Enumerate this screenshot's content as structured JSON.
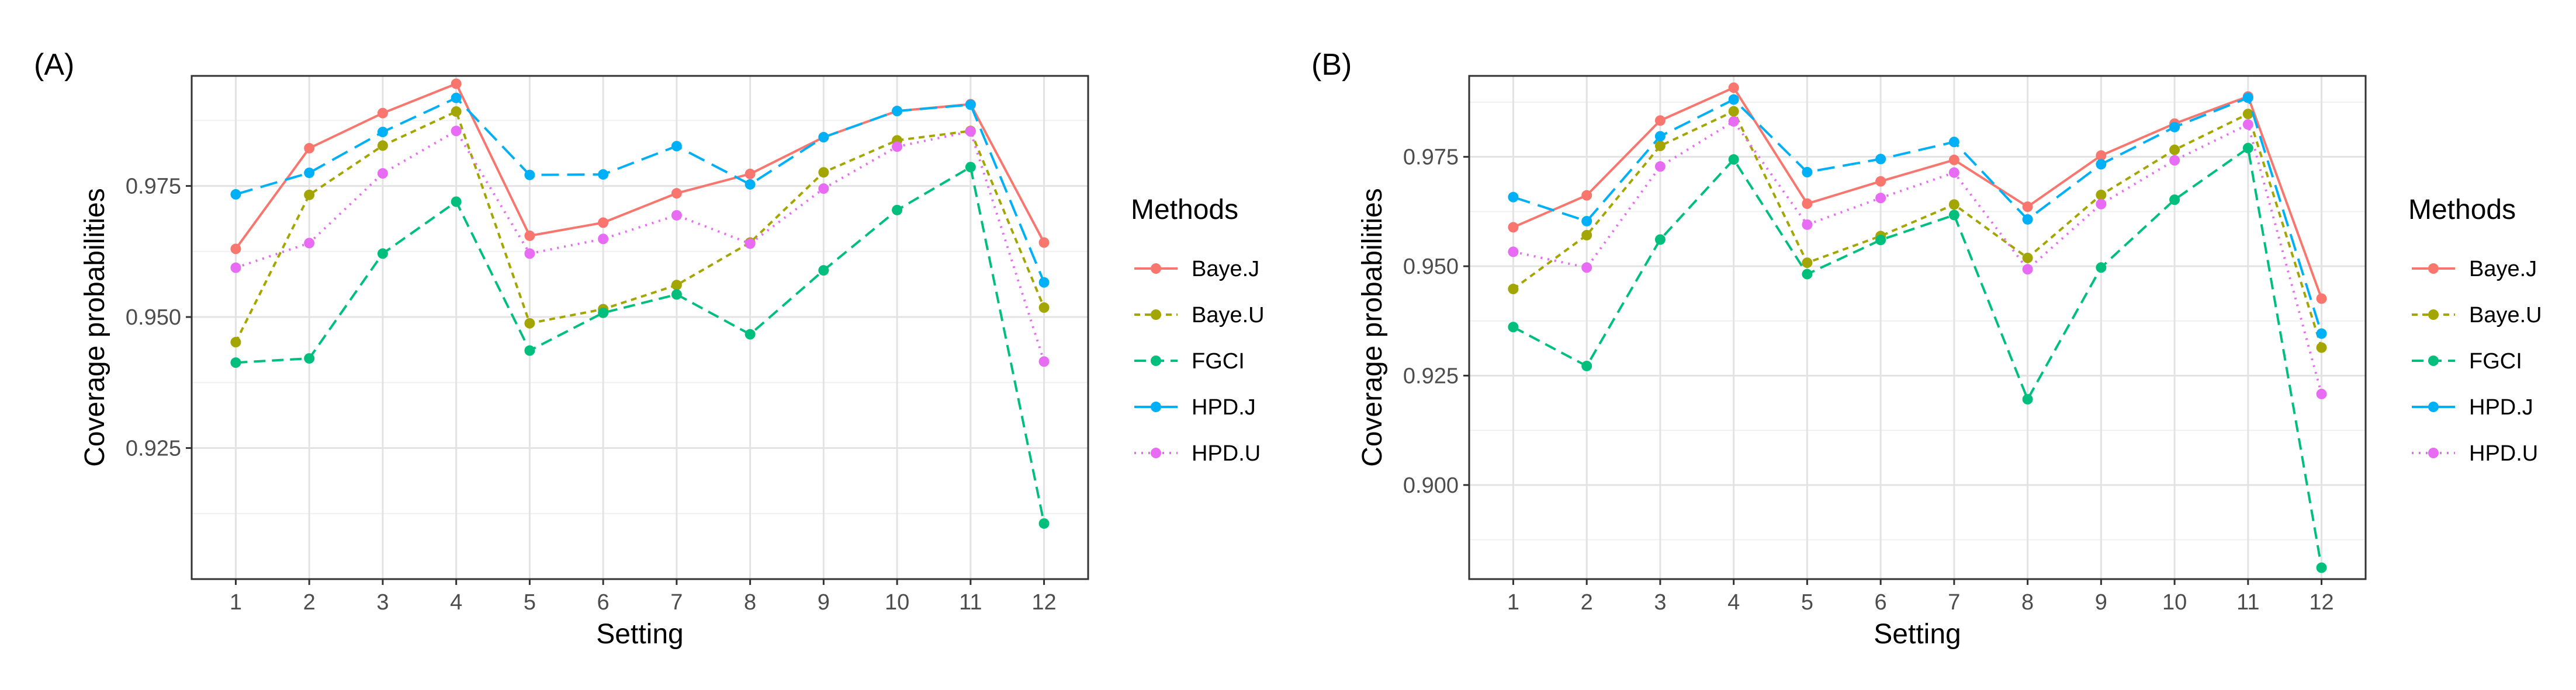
{
  "chart_data": [
    {
      "type": "line",
      "panel_label": "(A)",
      "xlabel": "Setting",
      "ylabel": "Coverage probabilities",
      "categories": [
        "1",
        "2",
        "3",
        "4",
        "5",
        "6",
        "7",
        "8",
        "9",
        "10",
        "11",
        "12"
      ],
      "ylim": [
        0.9,
        0.996
      ],
      "yticks": [
        0.925,
        0.95,
        0.975
      ],
      "ytick_labels": [
        "0.925",
        "0.950",
        "0.975"
      ],
      "legend": {
        "title": "Methods",
        "position": "right"
      },
      "grid": true,
      "series": [
        {
          "name": "Baye.J",
          "values": [
            0.963,
            0.9822,
            0.9889,
            0.9945,
            0.9655,
            0.968,
            0.9736,
            0.9773,
            0.9843,
            0.9893,
            0.9906,
            0.9642
          ]
        },
        {
          "name": "Baye.U",
          "values": [
            0.9452,
            0.9733,
            0.9827,
            0.9892,
            0.9488,
            0.9515,
            0.9561,
            0.9642,
            0.9776,
            0.9837,
            0.9855,
            0.9518
          ]
        },
        {
          "name": "FGCI",
          "values": [
            0.9413,
            0.9421,
            0.9621,
            0.972,
            0.9436,
            0.9508,
            0.9543,
            0.9467,
            0.9589,
            0.9704,
            0.9786,
            0.9106
          ]
        },
        {
          "name": "HPD.J",
          "values": [
            0.9734,
            0.9775,
            0.9853,
            0.9918,
            0.9771,
            0.9772,
            0.9826,
            0.9753,
            0.9843,
            0.9893,
            0.9905,
            0.9566
          ]
        },
        {
          "name": "HPD.U",
          "values": [
            0.9594,
            0.9641,
            0.9774,
            0.9855,
            0.9621,
            0.9649,
            0.9694,
            0.964,
            0.9745,
            0.9825,
            0.9854,
            0.9415
          ]
        }
      ]
    },
    {
      "type": "line",
      "panel_label": "(B)",
      "xlabel": "Setting",
      "ylabel": "Coverage probabilities",
      "categories": [
        "1",
        "2",
        "3",
        "4",
        "5",
        "6",
        "7",
        "8",
        "9",
        "10",
        "11",
        "12"
      ],
      "ylim": [
        0.8785,
        0.9935
      ],
      "yticks": [
        0.9,
        0.925,
        0.95,
        0.975
      ],
      "ytick_labels": [
        "0.900",
        "0.925",
        "0.950",
        "0.975"
      ],
      "legend": {
        "title": "Methods",
        "position": "right"
      },
      "grid": true,
      "series": [
        {
          "name": "Baye.J",
          "values": [
            0.9589,
            0.9662,
            0.9833,
            0.9908,
            0.9643,
            0.9694,
            0.9743,
            0.9636,
            0.9753,
            0.9826,
            0.9888,
            0.9426
          ]
        },
        {
          "name": "Baye.U",
          "values": [
            0.9448,
            0.9571,
            0.9775,
            0.9854,
            0.9508,
            0.9569,
            0.9641,
            0.9519,
            0.9663,
            0.9766,
            0.9848,
            0.9314
          ]
        },
        {
          "name": "FGCI",
          "values": [
            0.9361,
            0.9272,
            0.9561,
            0.9744,
            0.9482,
            0.956,
            0.9617,
            0.9196,
            0.9497,
            0.9652,
            0.977,
            0.8811
          ]
        },
        {
          "name": "HPD.J",
          "values": [
            0.9658,
            0.9603,
            0.9797,
            0.9881,
            0.9715,
            0.9745,
            0.9784,
            0.9607,
            0.9733,
            0.9818,
            0.9885,
            0.9346
          ]
        },
        {
          "name": "HPD.U",
          "values": [
            0.9533,
            0.9497,
            0.9728,
            0.9831,
            0.9595,
            0.9656,
            0.9714,
            0.9493,
            0.9642,
            0.9742,
            0.9824,
            0.9208
          ]
        }
      ]
    }
  ],
  "styles": {
    "Baye.J": {
      "color": "#F8766D",
      "dash": "solid"
    },
    "Baye.U": {
      "color": "#A3A500",
      "dash": "short-dash"
    },
    "FGCI": {
      "color": "#00BF7D",
      "dash": "dash"
    },
    "HPD.J": {
      "color": "#00B0F6",
      "dash": "long-dash"
    },
    "HPD.U": {
      "color": "#E76BF3",
      "dash": "dotted"
    }
  }
}
